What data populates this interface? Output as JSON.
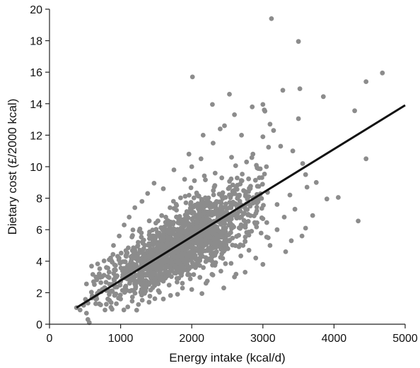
{
  "chart_data": {
    "type": "scatter",
    "xlabel": "Energy intake (kcal/d)",
    "ylabel": "Dietary cost (£/2000 kcal)",
    "xlim": [
      0,
      5000
    ],
    "ylim": [
      0,
      20
    ],
    "xticks": [
      "0",
      "1000",
      "2000",
      "3000",
      "4000",
      "5000"
    ],
    "yticks": [
      "0",
      "2",
      "4",
      "6",
      "8",
      "10",
      "12",
      "14",
      "16",
      "18",
      "20"
    ],
    "grid": false,
    "legend": "none",
    "point_color": "#8c8c8c",
    "line_color": "#111111",
    "regression_line": {
      "x": [
        380,
        5000
      ],
      "y": [
        1.05,
        13.9
      ]
    },
    "highlighted_points": [
      {
        "x": 3120,
        "y": 19.4
      },
      {
        "x": 3500,
        "y": 17.95
      },
      {
        "x": 2010,
        "y": 15.7
      },
      {
        "x": 4680,
        "y": 15.95
      },
      {
        "x": 4450,
        "y": 15.4
      },
      {
        "x": 3520,
        "y": 14.95
      },
      {
        "x": 3280,
        "y": 14.85
      },
      {
        "x": 3850,
        "y": 14.45
      },
      {
        "x": 2530,
        "y": 14.6
      },
      {
        "x": 4290,
        "y": 13.55
      },
      {
        "x": 4450,
        "y": 10.5
      },
      {
        "x": 4060,
        "y": 8.05
      },
      {
        "x": 4340,
        "y": 6.55
      },
      {
        "x": 3000,
        "y": 13.95
      },
      {
        "x": 2850,
        "y": 13.8
      },
      {
        "x": 3020,
        "y": 13.6
      },
      {
        "x": 2600,
        "y": 13.3
      },
      {
        "x": 3500,
        "y": 13.05
      },
      {
        "x": 3100,
        "y": 12.7
      },
      {
        "x": 3150,
        "y": 12.3
      },
      {
        "x": 2400,
        "y": 12.4
      },
      {
        "x": 3000,
        "y": 11.9
      },
      {
        "x": 2300,
        "y": 11.5
      },
      {
        "x": 2700,
        "y": 12.0
      },
      {
        "x": 3250,
        "y": 11.3
      },
      {
        "x": 3560,
        "y": 10.2
      },
      {
        "x": 3420,
        "y": 11.0
      },
      {
        "x": 3600,
        "y": 9.5
      },
      {
        "x": 3750,
        "y": 9.0
      },
      {
        "x": 3900,
        "y": 7.95
      },
      {
        "x": 3620,
        "y": 8.7
      },
      {
        "x": 3380,
        "y": 8.2
      },
      {
        "x": 3100,
        "y": 5.0
      },
      {
        "x": 3000,
        "y": 3.8
      },
      {
        "x": 3320,
        "y": 4.6
      },
      {
        "x": 3400,
        "y": 5.3
      },
      {
        "x": 2860,
        "y": 10.8
      },
      {
        "x": 2950,
        "y": 9.3
      },
      {
        "x": 3050,
        "y": 10.0
      },
      {
        "x": 1960,
        "y": 10.8
      },
      {
        "x": 1750,
        "y": 9.8
      },
      {
        "x": 1470,
        "y": 8.95
      },
      {
        "x": 1900,
        "y": 9.2
      },
      {
        "x": 2130,
        "y": 10.5
      },
      {
        "x": 2000,
        "y": 10.0
      },
      {
        "x": 2560,
        "y": 10.6
      },
      {
        "x": 2160,
        "y": 12.0
      },
      {
        "x": 2290,
        "y": 13.95
      },
      {
        "x": 2460,
        "y": 12.6
      },
      {
        "x": 2770,
        "y": 10.3
      },
      {
        "x": 380,
        "y": 1.05
      },
      {
        "x": 430,
        "y": 0.9
      },
      {
        "x": 480,
        "y": 1.2
      },
      {
        "x": 520,
        "y": 0.7
      },
      {
        "x": 540,
        "y": 0.3
      },
      {
        "x": 560,
        "y": 0.1
      },
      {
        "x": 600,
        "y": 1.8
      },
      {
        "x": 650,
        "y": 1.3
      },
      {
        "x": 700,
        "y": 2.1
      },
      {
        "x": 780,
        "y": 0.9
      },
      {
        "x": 820,
        "y": 1.6
      },
      {
        "x": 880,
        "y": 0.95
      },
      {
        "x": 940,
        "y": 1.3
      },
      {
        "x": 1000,
        "y": 1.6
      },
      {
        "x": 1100,
        "y": 1.1
      },
      {
        "x": 620,
        "y": 2.7
      },
      {
        "x": 700,
        "y": 3.2
      },
      {
        "x": 800,
        "y": 3.6
      },
      {
        "x": 860,
        "y": 4.2
      },
      {
        "x": 900,
        "y": 5.0
      },
      {
        "x": 980,
        "y": 5.6
      },
      {
        "x": 1050,
        "y": 6.3
      },
      {
        "x": 1120,
        "y": 6.8
      },
      {
        "x": 1200,
        "y": 7.4
      },
      {
        "x": 1300,
        "y": 7.8
      },
      {
        "x": 1380,
        "y": 8.3
      },
      {
        "x": 1600,
        "y": 8.6
      },
      {
        "x": 2450,
        "y": 2.3
      },
      {
        "x": 2200,
        "y": 2.6
      },
      {
        "x": 2600,
        "y": 3.0
      },
      {
        "x": 2000,
        "y": 2.2
      },
      {
        "x": 1800,
        "y": 1.9
      },
      {
        "x": 1600,
        "y": 1.6
      },
      {
        "x": 1400,
        "y": 1.4
      },
      {
        "x": 1250,
        "y": 1.25
      },
      {
        "x": 2750,
        "y": 3.3
      },
      {
        "x": 2900,
        "y": 4.2
      },
      {
        "x": 3200,
        "y": 6.0
      },
      {
        "x": 3300,
        "y": 6.8
      },
      {
        "x": 3450,
        "y": 7.3
      },
      {
        "x": 3600,
        "y": 6.1
      },
      {
        "x": 3700,
        "y": 6.9
      },
      {
        "x": 3550,
        "y": 5.6
      },
      {
        "x": 3000,
        "y": 6.7
      },
      {
        "x": 3200,
        "y": 7.6
      }
    ],
    "cloud": {
      "count": 1500,
      "x_mean": 1850,
      "x_sd": 520,
      "x_min": 480,
      "x_max": 3100,
      "intercept": 0.75,
      "slope": 0.00235,
      "resid_sd_base": 0.9,
      "resid_sd_per_kcal": 0.00035
    }
  }
}
